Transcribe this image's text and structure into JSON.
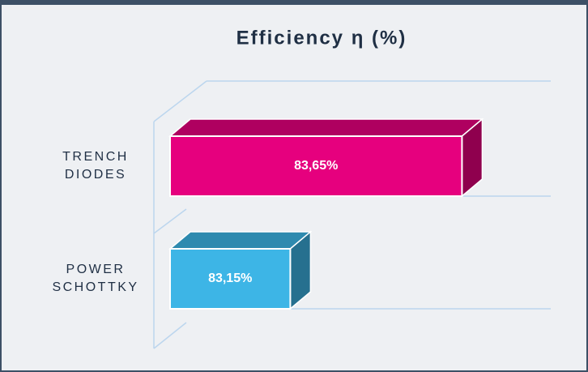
{
  "chart_data": {
    "type": "bar3d_horizontal",
    "title": "Efficiency η (%)",
    "categories": [
      "TRENCH DIODES",
      "POWER SCHOTTKY"
    ],
    "values": [
      83.65,
      83.15
    ],
    "value_labels": [
      "83,65%",
      "83,15%"
    ],
    "colors": [
      "#e6007e",
      "#3db5e6"
    ],
    "xlim": [
      82.8,
      83.8
    ]
  }
}
